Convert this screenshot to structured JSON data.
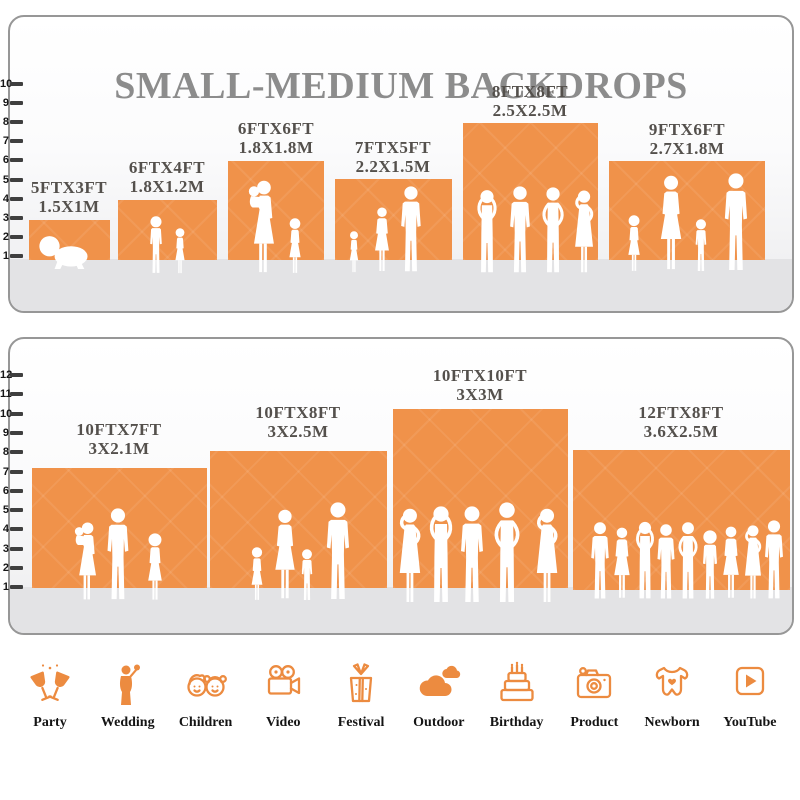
{
  "title": "SMALL-MEDIUM BACKDROPS",
  "panels": [
    {
      "name": "small-medium-top",
      "ruler": [
        "10",
        "9",
        "8",
        "7",
        "6",
        "5",
        "4",
        "3",
        "2",
        "1"
      ],
      "backdrops": [
        {
          "size_ft": "5FTX3FT",
          "size_m": "1.5X1M"
        },
        {
          "size_ft": "6FTX4FT",
          "size_m": "1.8X1.2M"
        },
        {
          "size_ft": "6FTX6FT",
          "size_m": "1.8X1.8M"
        },
        {
          "size_ft": "7FTX5FT",
          "size_m": "2.2X1.5M"
        },
        {
          "size_ft": "8FTX8FT",
          "size_m": "2.5X2.5M"
        },
        {
          "size_ft": "9FTX6FT",
          "size_m": "2.7X1.8M"
        }
      ]
    },
    {
      "name": "small-medium-bottom",
      "ruler": [
        "12",
        "11",
        "10",
        "9",
        "8",
        "7",
        "6",
        "5",
        "4",
        "3",
        "2",
        "1"
      ],
      "backdrops": [
        {
          "size_ft": "10FTX7FT",
          "size_m": "3X2.1M"
        },
        {
          "size_ft": "10FTX8FT",
          "size_m": "3X2.5M"
        },
        {
          "size_ft": "10FTX10FT",
          "size_m": "3X3M"
        },
        {
          "size_ft": "12FTX8FT",
          "size_m": "3.6X2.5M"
        }
      ]
    }
  ],
  "categories": [
    {
      "label": "Party",
      "icon": "party-icon"
    },
    {
      "label": "Wedding",
      "icon": "wedding-icon"
    },
    {
      "label": "Children",
      "icon": "children-icon"
    },
    {
      "label": "Video",
      "icon": "video-icon"
    },
    {
      "label": "Festival",
      "icon": "festival-icon"
    },
    {
      "label": "Outdoor",
      "icon": "outdoor-icon"
    },
    {
      "label": "Birthday",
      "icon": "birthday-icon"
    },
    {
      "label": "Product",
      "icon": "product-icon"
    },
    {
      "label": "Newborn",
      "icon": "newborn-icon"
    },
    {
      "label": "YouTube",
      "icon": "youtube-icon"
    }
  ],
  "colors": {
    "accent_orange": "#F0924A",
    "icon_orange": "#EC8B40",
    "title_gray": "#8C8C8C",
    "label_gray": "#54504C",
    "floor_gray": "#E3E3E5"
  }
}
